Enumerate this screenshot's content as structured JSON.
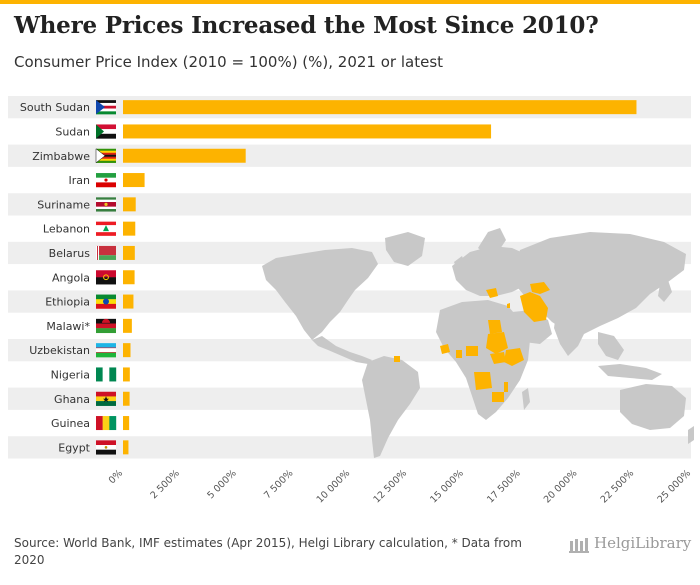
{
  "title": "Where Prices Increased the Most Since 2010?",
  "subtitle": "Consumer Price Index (2010 = 100%) (%), 2021 or latest",
  "source": "Source: World Bank, IMF estimates (Apr 2015), Helgi Library calculation, * Data from 2020",
  "brand": "HelgiLibrary",
  "colors": {
    "bar": "#FDB300",
    "stripe": "#eeeeee",
    "map": "#c8c8c8",
    "highlight": "#FDB300",
    "topbar": "#FDB300"
  },
  "chart_data": {
    "type": "bar",
    "orientation": "horizontal",
    "categories": [
      "South Sudan",
      "Sudan",
      "Zimbabwe",
      "Iran",
      "Suriname",
      "Lebanon",
      "Belarus",
      "Angola",
      "Ethiopia",
      "Malawi*",
      "Uzbekistan",
      "Nigeria",
      "Ghana",
      "Guinea",
      "Egypt"
    ],
    "values": [
      22600,
      16200,
      5400,
      950,
      560,
      540,
      520,
      510,
      460,
      390,
      330,
      300,
      290,
      270,
      240
    ],
    "xlim": [
      0,
      25000
    ],
    "xticks": [
      0,
      2500,
      5000,
      7500,
      10000,
      12500,
      15000,
      17500,
      20000,
      22500,
      25000
    ],
    "xtick_labels": [
      "0%",
      "2 500%",
      "5 000%",
      "7 500%",
      "10 000%",
      "12 500%",
      "15 000%",
      "17 500%",
      "20 000%",
      "22 500%",
      "25 000%"
    ],
    "flag_icons": [
      "south-sudan-flag-icon",
      "sudan-flag-icon",
      "zimbabwe-flag-icon",
      "iran-flag-icon",
      "suriname-flag-icon",
      "lebanon-flag-icon",
      "belarus-flag-icon",
      "angola-flag-icon",
      "ethiopia-flag-icon",
      "malawi-flag-icon",
      "uzbekistan-flag-icon",
      "nigeria-flag-icon",
      "ghana-flag-icon",
      "guinea-flag-icon",
      "egypt-flag-icon"
    ],
    "grid": false,
    "legend": "none",
    "background": "world map"
  }
}
